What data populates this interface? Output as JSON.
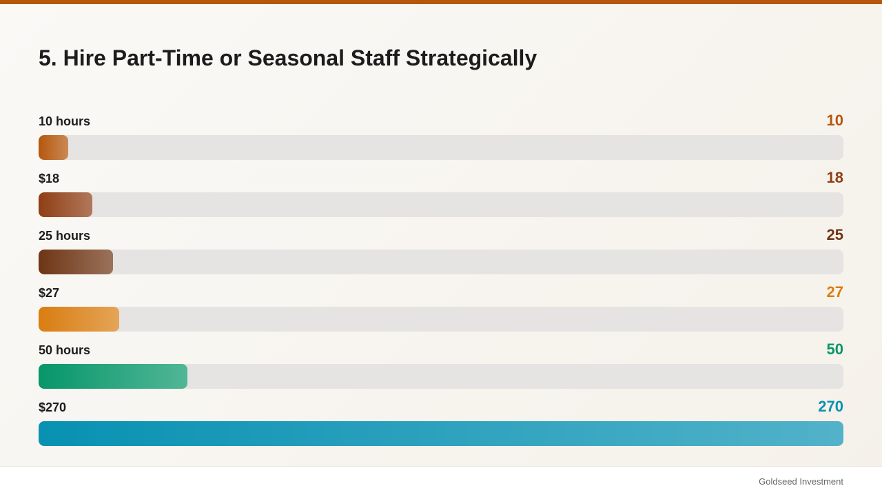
{
  "slide": {
    "title": "5. Hire Part-Time or Seasonal Staff Strategically",
    "footer": "Goldseed Investment",
    "accent_color": "#b5570d"
  },
  "chart_data": {
    "type": "bar",
    "orientation": "horizontal",
    "title": "5. Hire Part-Time or Seasonal Staff Strategically",
    "categories": [
      "10 hours",
      "$18",
      "25 hours",
      "$27",
      "50 hours",
      "$270"
    ],
    "values": [
      10,
      18,
      25,
      27,
      50,
      270
    ],
    "value_labels": [
      "10",
      "18",
      "25",
      "27",
      "50",
      "270"
    ],
    "colors": [
      "#b5570d",
      "#8f3e14",
      "#6e3515",
      "#d97d10",
      "#079669",
      "#0891b2"
    ],
    "xlim": [
      0,
      270
    ],
    "grid": false,
    "legend": "none"
  }
}
